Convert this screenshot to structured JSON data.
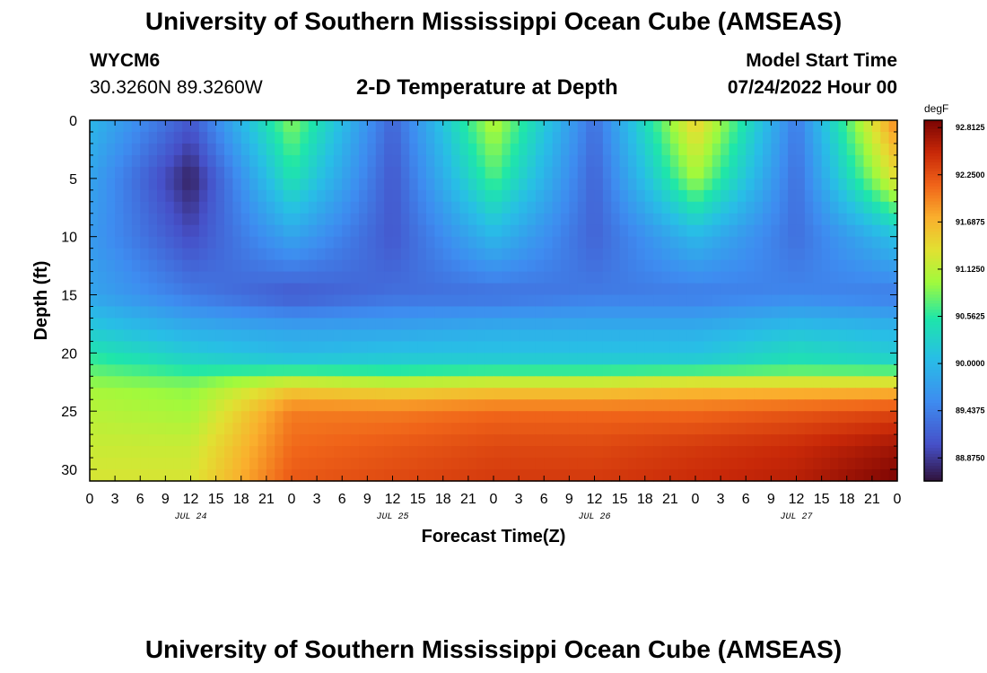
{
  "header": {
    "title": "University of Southern Mississippi Ocean Cube (AMSEAS)",
    "station": "WYCM6",
    "coordinates": "30.3260N  89.3260W",
    "subtitle": "2-D Temperature at Depth",
    "start_label": "Model Start Time",
    "start_value": "07/24/2022 Hour 00"
  },
  "footer": {
    "title": "University of Southern Mississippi Ocean Cube (AMSEAS)"
  },
  "chart_data": {
    "type": "heatmap",
    "title": "2-D Temperature at Depth",
    "xlabel": "Forecast Time(Z)",
    "ylabel": "Depth (ft)",
    "xlim": [
      0,
      96
    ],
    "ylim": [
      31,
      0
    ],
    "x_tick_labels": [
      "0",
      "3",
      "6",
      "9",
      "12",
      "15",
      "18",
      "21",
      "0",
      "3",
      "6",
      "9",
      "12",
      "15",
      "18",
      "21",
      "0",
      "3",
      "6",
      "9",
      "12",
      "15",
      "18",
      "21",
      "0",
      "3",
      "6",
      "9",
      "12",
      "15",
      "18",
      "21",
      "0"
    ],
    "y_tick_values": [
      0,
      5,
      10,
      15,
      20,
      25,
      30
    ],
    "day_labels": [
      "JUL 24",
      "JUL 25",
      "JUL 26",
      "JUL 27"
    ],
    "colorbar": {
      "unit": "degF",
      "min": 88.6,
      "max": 92.9,
      "tick_labels": [
        "92.8125",
        "92.2500",
        "91.6875",
        "91.1250",
        "90.5625",
        "90.0000",
        "89.4375",
        "88.8750"
      ],
      "tick_values": [
        92.8125,
        92.25,
        91.6875,
        91.125,
        90.5625,
        90.0,
        89.4375,
        88.875
      ]
    },
    "hours": [
      0,
      12,
      24,
      36,
      48,
      60,
      72,
      84,
      96
    ],
    "depth_levels": [
      0,
      5,
      10,
      15,
      18,
      20,
      21,
      22,
      23,
      25,
      28,
      31
    ],
    "temperature": [
      [
        90.0,
        89.1,
        90.9,
        89.2,
        91.1,
        89.3,
        91.5,
        89.4,
        92.0
      ],
      [
        89.8,
        88.7,
        90.5,
        89.1,
        90.7,
        89.2,
        91.0,
        89.3,
        91.4
      ],
      [
        89.7,
        89.0,
        89.8,
        89.1,
        90.0,
        89.2,
        90.0,
        89.3,
        90.1
      ],
      [
        89.8,
        89.4,
        89.1,
        89.3,
        89.3,
        89.4,
        89.4,
        89.5,
        89.4
      ],
      [
        90.2,
        89.9,
        89.8,
        89.8,
        89.9,
        89.9,
        89.9,
        90.1,
        90.0
      ],
      [
        90.5,
        90.2,
        90.0,
        90.1,
        90.1,
        90.1,
        90.1,
        90.4,
        90.2
      ],
      [
        90.7,
        90.4,
        90.3,
        90.3,
        90.3,
        90.3,
        90.3,
        90.5,
        90.4
      ],
      [
        90.8,
        90.7,
        90.9,
        90.8,
        90.9,
        90.9,
        91.0,
        91.0,
        91.0
      ],
      [
        91.0,
        90.9,
        91.5,
        91.4,
        91.5,
        91.5,
        91.6,
        91.6,
        91.6
      ],
      [
        91.1,
        91.0,
        92.0,
        92.0,
        92.1,
        92.1,
        92.1,
        92.2,
        92.3
      ],
      [
        91.2,
        91.2,
        92.1,
        92.2,
        92.3,
        92.3,
        92.4,
        92.5,
        92.7
      ],
      [
        91.3,
        91.3,
        92.2,
        92.3,
        92.4,
        92.4,
        92.5,
        92.6,
        92.9
      ]
    ]
  }
}
